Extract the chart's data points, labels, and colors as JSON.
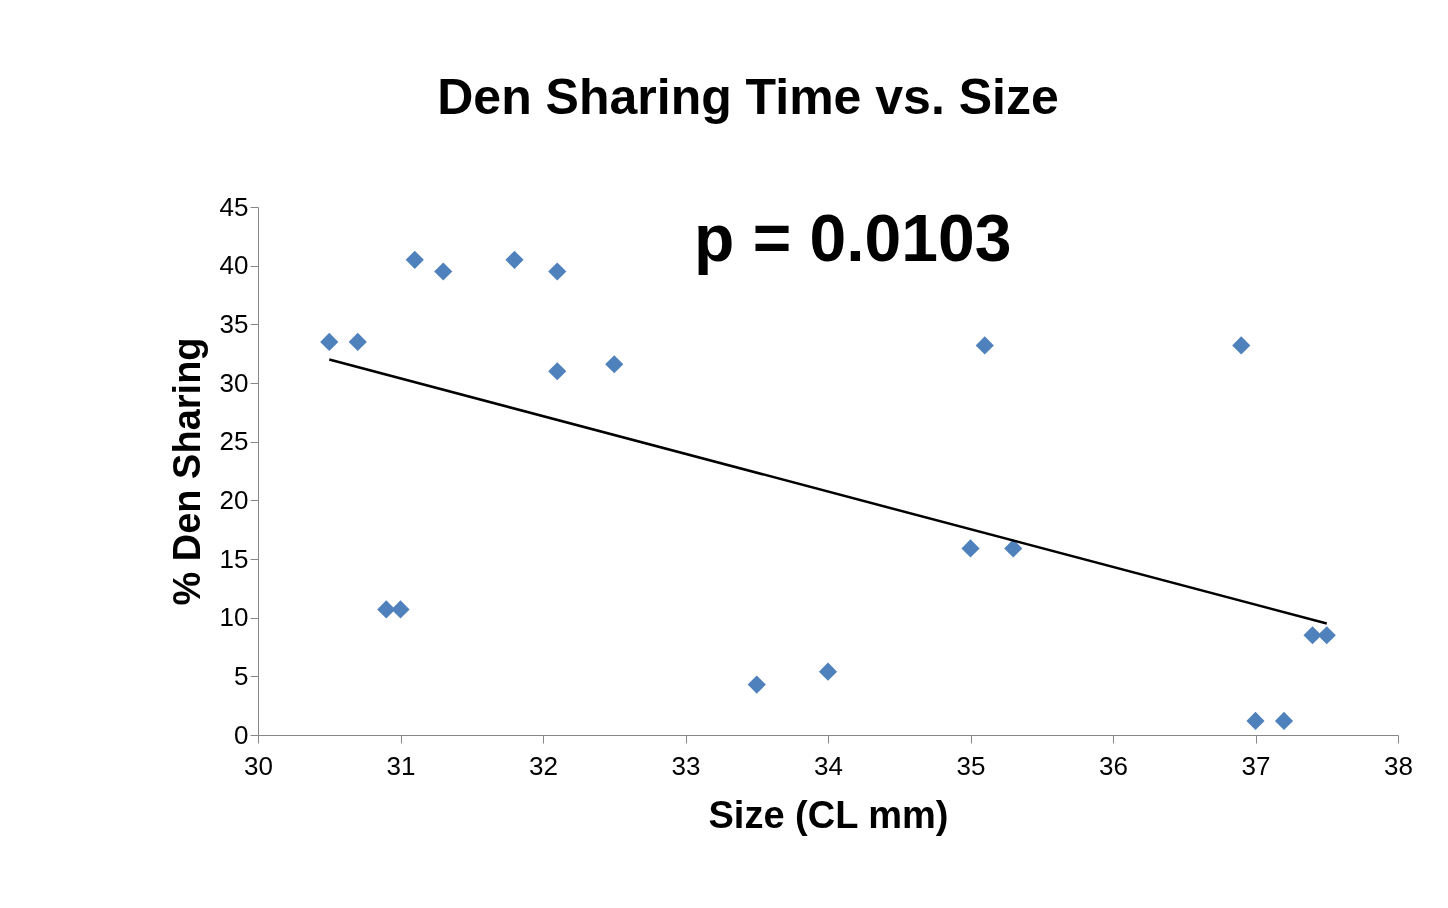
{
  "chart_data": {
    "type": "scatter",
    "title": "Den Sharing Time vs. Size",
    "xlabel": "Size (CL mm)",
    "ylabel": "% Den Sharing",
    "annotations": [
      "p = 0.0103"
    ],
    "xlim": [
      30,
      38
    ],
    "xticks": [
      30,
      31,
      32,
      33,
      34,
      35,
      36,
      37,
      38
    ],
    "ylim": [
      0,
      45
    ],
    "yticks": [
      0,
      5,
      10,
      15,
      20,
      25,
      30,
      35,
      40,
      45
    ],
    "grid": false,
    "series": [
      {
        "marker": "diamond",
        "color": "#4f81bd",
        "x": [
          30.5,
          30.7,
          31.1,
          31.3,
          31.8,
          32.1,
          32.1,
          32.5,
          30.9,
          31.0,
          33.5,
          34.0,
          35.0,
          35.3,
          35.1,
          36.9,
          37.0,
          37.2,
          37.4,
          37.5
        ],
        "values": [
          33.5,
          33.5,
          40.5,
          39.5,
          40.5,
          39.5,
          31,
          31.6,
          10.7,
          10.7,
          4.3,
          5.4,
          15.9,
          15.9,
          33.2,
          33.2,
          1.2,
          1.2,
          8.5,
          8.5
        ]
      },
      {
        "type": "line",
        "color": "#000000",
        "x": [
          30.5,
          37.5
        ],
        "values": [
          32.0,
          9.5
        ]
      }
    ]
  }
}
